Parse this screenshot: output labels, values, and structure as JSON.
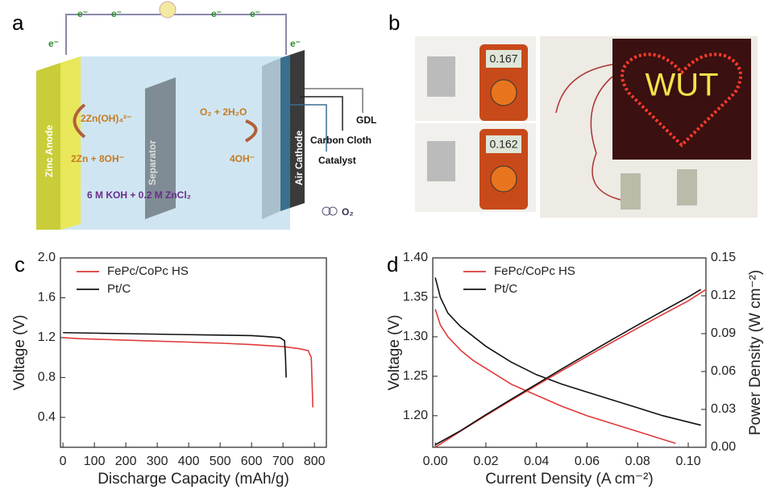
{
  "panel_a": {
    "label": "a",
    "electrons": [
      "e⁻",
      "e⁻",
      "e⁻",
      "e⁻",
      "e⁻",
      "e⁻"
    ],
    "zinc_anode": "Zinc Anode",
    "separator": "Separator",
    "air_cathode": "Air Cathode",
    "anode_reaction_top": "2Zn(OH)₄²⁻",
    "anode_reaction_bottom": "2Zn + 8OH⁻",
    "cathode_reaction_top": "O₂ + 2H₂O",
    "cathode_reaction_bottom": "4OH⁻",
    "electrolyte": "6 M KOH + 0.2 M ZnCl₂",
    "gdl": "GDL",
    "carbon_cloth": "Carbon Cloth",
    "catalyst": "Catalyst",
    "oxygen": "O₂"
  },
  "panel_b": {
    "label": "b",
    "meter_readings": [
      "0.167",
      "0.162"
    ],
    "sign": "WUT"
  },
  "chart_data": [
    {
      "type": "line",
      "label": "c",
      "x_label": "Discharge Capacity (mAh/g)",
      "y_label": "Voltage (V)",
      "legend": "upper left",
      "xlim": [
        -8,
        838
      ],
      "xticks": [
        0,
        100,
        200,
        300,
        400,
        500,
        600,
        700,
        800
      ],
      "ylim": [
        0.1,
        2.0
      ],
      "yticks": [
        0.4,
        0.8,
        1.2,
        1.6,
        {
          "value": 2,
          "label": "2.0"
        }
      ],
      "series": [
        {
          "name": "FePc/CoPc HS",
          "color": "#e03a3a",
          "x": [
            0,
            50,
            100,
            200,
            300,
            400,
            500,
            600,
            650,
            700,
            750,
            780,
            790,
            795
          ],
          "values": [
            1.2,
            1.19,
            1.185,
            1.175,
            1.165,
            1.155,
            1.145,
            1.13,
            1.12,
            1.11,
            1.09,
            1.07,
            1.0,
            0.5
          ]
        },
        {
          "name": "Pt/C",
          "color": "#111111",
          "x": [
            0,
            100,
            200,
            300,
            400,
            500,
            600,
            650,
            690,
            705,
            708,
            710
          ],
          "values": [
            1.25,
            1.245,
            1.24,
            1.235,
            1.23,
            1.225,
            1.22,
            1.21,
            1.2,
            1.17,
            1.0,
            0.8
          ]
        }
      ]
    },
    {
      "type": "line",
      "label": "d",
      "x_label": "Current Density (A cm⁻²)",
      "y_label": "Voltage (V)",
      "y2_label": "Power Density (W cm⁻²)",
      "legend": "upper left",
      "xlim": [
        -0.001,
        0.107
      ],
      "xticks": [
        {
          "value": 0,
          "label": "0.00"
        },
        0.02,
        0.04,
        0.06,
        0.08,
        {
          "value": 0.1,
          "label": "0.10"
        }
      ],
      "ylim": [
        1.16,
        1.4
      ],
      "yticks": [
        {
          "value": 1.2,
          "label": "1.20"
        },
        1.25,
        {
          "value": 1.3,
          "label": "1.30"
        },
        1.35,
        {
          "value": 1.4,
          "label": "1.40"
        }
      ],
      "y2lim": [
        0,
        0.15
      ],
      "y2ticks": [
        {
          "value": 0,
          "label": "0.00"
        },
        0.03,
        0.06,
        0.09,
        0.12,
        0.15
      ],
      "series": [
        {
          "name": "FePc/CoPc HS",
          "color": "#e03a3a",
          "x": [
            0,
            0.002,
            0.005,
            0.01,
            0.015,
            0.02,
            0.03,
            0.04,
            0.05,
            0.06,
            0.07,
            0.08,
            0.09,
            0.095
          ],
          "values": [
            1.335,
            1.315,
            1.3,
            1.283,
            1.27,
            1.26,
            1.24,
            1.226,
            1.212,
            1.2,
            1.19,
            1.18,
            1.17,
            1.165
          ]
        },
        {
          "name": "Pt/C",
          "color": "#111111",
          "x": [
            0,
            0.002,
            0.005,
            0.01,
            0.02,
            0.03,
            0.04,
            0.05,
            0.06,
            0.07,
            0.08,
            0.09,
            0.1,
            0.105
          ],
          "values": [
            1.375,
            1.35,
            1.33,
            1.313,
            1.288,
            1.268,
            1.252,
            1.24,
            1.23,
            1.22,
            1.21,
            1.2,
            1.192,
            1.188
          ]
        },
        {
          "axis": "y2",
          "color": "#e03a3a",
          "x": [
            0,
            0.01,
            0.02,
            0.03,
            0.04,
            0.05,
            0.06,
            0.07,
            0.08,
            0.09,
            0.1,
            0.107
          ],
          "values": [
            0,
            0.0128,
            0.0252,
            0.0372,
            0.049,
            0.0606,
            0.072,
            0.0833,
            0.0944,
            0.1053,
            0.116,
            0.125
          ]
        },
        {
          "axis": "y2",
          "color": "#111111",
          "x": [
            0,
            0.01,
            0.02,
            0.03,
            0.04,
            0.05,
            0.06,
            0.07,
            0.08,
            0.09,
            0.1,
            0.105
          ],
          "values": [
            0.002,
            0.0131,
            0.0258,
            0.038,
            0.05,
            0.062,
            0.0738,
            0.0854,
            0.0968,
            0.108,
            0.119,
            0.125
          ]
        }
      ]
    }
  ]
}
